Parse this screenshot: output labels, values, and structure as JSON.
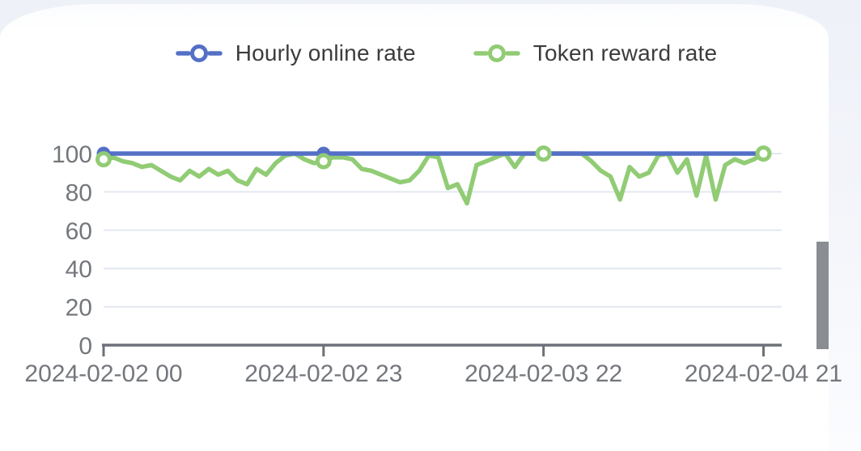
{
  "legend": [
    {
      "label": "Hourly online rate",
      "color": "#5470c6"
    },
    {
      "label": "Token reward rate",
      "color": "#91cc75"
    }
  ],
  "chart_data": {
    "type": "line",
    "title": "",
    "xlabel": "",
    "ylabel": "",
    "ylim": [
      0,
      100
    ],
    "grid": true,
    "legend_position": "top-center",
    "y_ticks": [
      0,
      20,
      40,
      60,
      80,
      100
    ],
    "x_tick_labels": [
      "2024-02-02 00",
      "2024-02-02 23",
      "2024-02-03 22",
      "2024-02-04 21"
    ],
    "x_tick_hours": [
      0,
      23,
      46,
      69
    ],
    "x_unit": "hour",
    "series": [
      {
        "name": "Hourly online rate",
        "color": "#5470c6",
        "marker_style": "solid",
        "marker_hours": [
          0,
          23
        ],
        "values": [
          100,
          100,
          100,
          100,
          100,
          100,
          100,
          100,
          100,
          100,
          100,
          100,
          100,
          100,
          100,
          100,
          100,
          100,
          100,
          100,
          100,
          100,
          100,
          100,
          100,
          100,
          100,
          100,
          100,
          100,
          100,
          100,
          100,
          100,
          100,
          100,
          100,
          100,
          100,
          100,
          100,
          100,
          100,
          100,
          100,
          100,
          100,
          100,
          100,
          100,
          100,
          100,
          100,
          100,
          100,
          100,
          100,
          100,
          100,
          100,
          100,
          100,
          100,
          100,
          100,
          100,
          100,
          100,
          100,
          100
        ]
      },
      {
        "name": "Token reward rate",
        "color": "#91cc75",
        "marker_style": "ring",
        "marker_hours": [
          0,
          23,
          46,
          69
        ],
        "values": [
          97,
          98,
          96,
          95,
          93,
          94,
          91,
          88,
          86,
          91,
          88,
          92,
          89,
          91,
          86,
          84,
          92,
          89,
          95,
          99,
          100,
          97,
          95,
          96,
          98,
          98,
          97,
          92,
          91,
          89,
          87,
          85,
          86,
          91,
          99,
          98,
          82,
          84,
          74,
          94,
          96,
          98,
          100,
          93,
          100,
          100,
          100,
          100,
          100,
          100,
          100,
          96,
          91,
          88,
          76,
          93,
          88,
          90,
          99,
          100,
          90,
          97,
          78,
          99,
          76,
          94,
          97,
          95,
          97,
          100
        ]
      }
    ]
  },
  "colors": {
    "axis_line": "#6e7079",
    "gridline": "#e3e7f1",
    "axis_label": "#74777c",
    "legend_text": "#3c3c3c",
    "top_band": "#eef1f8",
    "scrollbar": "#8a8d92"
  },
  "scrollbar": {
    "visible": true
  }
}
